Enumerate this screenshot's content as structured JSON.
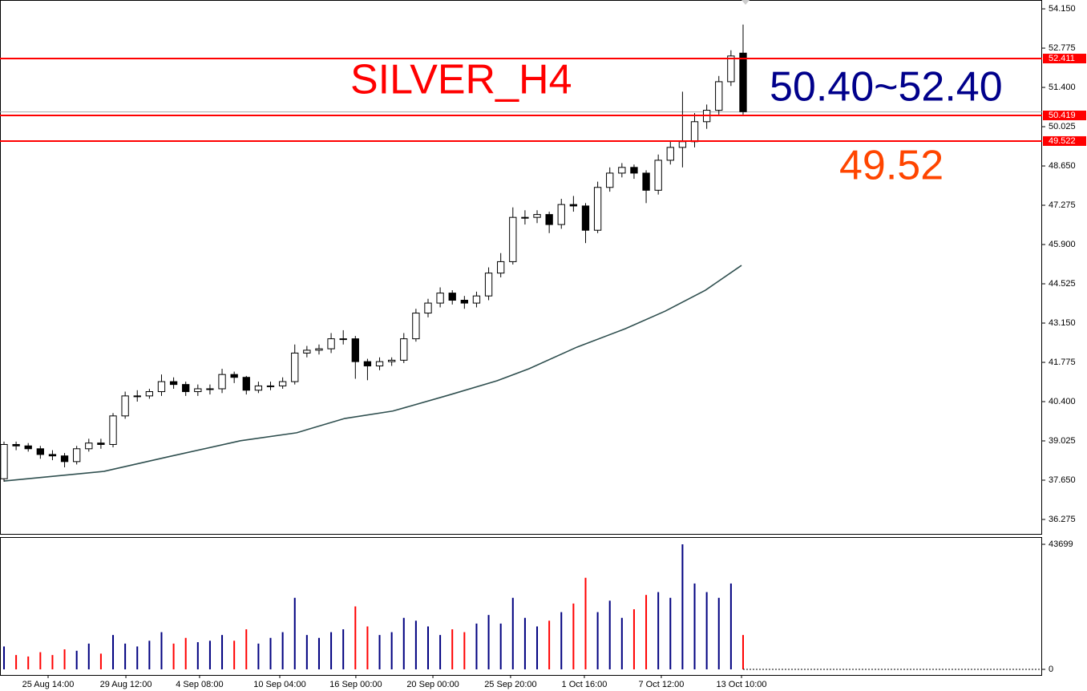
{
  "chart_data": {
    "type": "candlestick",
    "annotations": [
      {
        "text": "SILVER_H4",
        "color": "#ff0000"
      },
      {
        "text": "50.40~52.40",
        "color": "#00008b"
      },
      {
        "text": "49.52",
        "color": "#ff4500"
      }
    ],
    "xlim": [
      -0.33,
      85.68
    ],
    "xticks": [
      {
        "value": 3.64,
        "label": "25 Aug 14:00"
      },
      {
        "value": 10.06,
        "label": "29 Aug 12:00"
      },
      {
        "value": 16.14,
        "label": "4 Sep 08:00"
      },
      {
        "value": 22.76,
        "label": "10 Sep 04:00"
      },
      {
        "value": 29.04,
        "label": "16 Sep 00:00"
      },
      {
        "value": 35.4,
        "label": "20 Sep 00:00"
      },
      {
        "value": 41.81,
        "label": "25 Sep 20:00"
      },
      {
        "value": 47.9,
        "label": "1 Oct 16:00"
      },
      {
        "value": 54.25,
        "label": "7 Oct 12:00"
      },
      {
        "value": 60.87,
        "label": "13 Oct 10:00"
      }
    ],
    "ylim": [
      35.77,
      54.46
    ],
    "yticks": [
      {
        "value": 54.15,
        "label": "54.150"
      },
      {
        "value": 52.775,
        "label": "52.775"
      },
      {
        "value": 51.4,
        "label": "51.400"
      },
      {
        "value": 50.025,
        "label": "50.025"
      },
      {
        "value": 48.65,
        "label": "48.650"
      },
      {
        "value": 47.275,
        "label": "47.275"
      },
      {
        "value": 45.9,
        "label": "45.900"
      },
      {
        "value": 44.525,
        "label": "44.525"
      },
      {
        "value": 43.15,
        "label": "43.150"
      },
      {
        "value": 41.775,
        "label": "41.775"
      },
      {
        "value": 40.4,
        "label": "40.400"
      },
      {
        "value": 39.025,
        "label": "39.025"
      },
      {
        "value": 37.65,
        "label": "37.650"
      },
      {
        "value": 36.275,
        "label": "36.275"
      }
    ],
    "open": [
      37.7,
      38.9,
      38.85,
      38.75,
      38.55,
      38.5,
      38.3,
      38.75,
      38.95,
      38.9,
      39.9,
      40.6,
      40.6,
      40.75,
      41.1,
      41.0,
      40.75,
      40.85,
      40.85,
      41.35,
      41.25,
      40.8,
      40.95,
      40.95,
      41.1,
      42.1,
      42.2,
      42.25,
      42.6,
      42.6,
      41.8,
      41.65,
      41.8,
      41.85,
      42.6,
      43.5,
      43.85,
      44.2,
      43.95,
      43.85,
      44.1,
      44.9,
      45.3,
      46.85,
      46.85,
      46.95,
      46.6,
      47.3,
      47.25,
      46.4,
      47.9,
      48.4,
      48.6,
      48.4,
      47.8,
      48.85,
      49.3,
      49.5,
      50.2,
      50.6,
      51.6,
      52.6
    ],
    "high": [
      39.0,
      39.0,
      38.95,
      38.85,
      38.7,
      38.6,
      38.85,
      39.1,
      39.1,
      40.0,
      40.75,
      40.8,
      40.85,
      41.35,
      41.25,
      41.1,
      41.0,
      41.0,
      41.55,
      41.45,
      41.3,
      41.1,
      41.1,
      41.25,
      42.4,
      42.35,
      42.4,
      42.8,
      42.9,
      42.7,
      41.9,
      41.95,
      41.95,
      42.8,
      43.65,
      44.0,
      44.4,
      44.3,
      44.1,
      44.25,
      45.1,
      45.6,
      47.2,
      47.1,
      47.1,
      47.05,
      47.5,
      47.6,
      47.35,
      48.1,
      48.6,
      48.75,
      48.7,
      48.5,
      49.05,
      49.5,
      51.25,
      50.5,
      50.8,
      51.8,
      52.7,
      53.6
    ],
    "low": [
      37.6,
      38.7,
      38.65,
      38.4,
      38.35,
      38.1,
      38.2,
      38.65,
      38.75,
      38.8,
      39.8,
      40.4,
      40.5,
      40.6,
      40.85,
      40.6,
      40.6,
      40.65,
      40.7,
      41.05,
      40.65,
      40.7,
      40.8,
      40.85,
      41.0,
      41.95,
      42.05,
      42.1,
      42.4,
      41.2,
      41.15,
      41.5,
      41.65,
      41.75,
      42.5,
      43.35,
      43.7,
      43.8,
      43.65,
      43.7,
      43.95,
      44.75,
      45.2,
      46.6,
      46.65,
      46.3,
      46.45,
      47.05,
      45.95,
      46.3,
      47.75,
      48.25,
      48.2,
      47.35,
      47.65,
      48.7,
      48.6,
      49.3,
      49.95,
      50.45,
      51.45,
      50.45
    ],
    "close": [
      38.9,
      38.85,
      38.75,
      38.55,
      38.5,
      38.3,
      38.75,
      38.95,
      38.9,
      39.9,
      40.6,
      40.6,
      40.75,
      41.1,
      41.0,
      40.75,
      40.85,
      40.85,
      41.35,
      41.25,
      40.8,
      40.95,
      40.95,
      41.1,
      42.1,
      42.2,
      42.25,
      42.6,
      42.6,
      41.8,
      41.65,
      41.8,
      41.85,
      42.6,
      43.5,
      43.85,
      44.2,
      43.95,
      43.85,
      44.1,
      44.9,
      45.3,
      46.85,
      46.85,
      46.95,
      46.6,
      47.3,
      47.25,
      46.4,
      47.9,
      48.4,
      48.6,
      48.4,
      47.8,
      48.85,
      49.3,
      49.5,
      50.2,
      50.6,
      51.6,
      52.5,
      50.55
    ],
    "ma": {
      "color": "#2f4f4f",
      "x": [
        0,
        8.27,
        13.56,
        19.52,
        24.15,
        28.12,
        32.09,
        36.72,
        40.69,
        43.33,
        47.3,
        51.27,
        54.58,
        57.89,
        60.87
      ],
      "values": [
        37.62,
        37.96,
        38.47,
        39.03,
        39.31,
        39.81,
        40.07,
        40.63,
        41.13,
        41.55,
        42.31,
        42.95,
        43.57,
        44.3,
        45.17
      ]
    },
    "bid": 50.541,
    "levels": [
      {
        "value": 52.411,
        "label": "52.411"
      },
      {
        "value": 50.419,
        "label": "50.419"
      },
      {
        "value": 49.522,
        "label": "49.522"
      }
    ],
    "volume": {
      "ylim": [
        -1960,
        46220
      ],
      "yticks": [
        0,
        43699
      ],
      "values": [
        8000,
        5000,
        4500,
        6000,
        5000,
        7000,
        6500,
        9000,
        5500,
        12000,
        9000,
        8000,
        10000,
        13000,
        9000,
        11000,
        9500,
        10000,
        12000,
        10000,
        14000,
        9000,
        11000,
        13000,
        25000,
        12000,
        11000,
        13000,
        14000,
        22000,
        15000,
        12000,
        13000,
        18000,
        17000,
        15000,
        12000,
        14000,
        13000,
        16000,
        19000,
        16000,
        25000,
        18000,
        15000,
        17000,
        20000,
        23000,
        32000,
        20000,
        24000,
        18000,
        21000,
        26000,
        27000,
        25000,
        43699,
        30000,
        27000,
        25000,
        30000,
        12000
      ]
    }
  }
}
